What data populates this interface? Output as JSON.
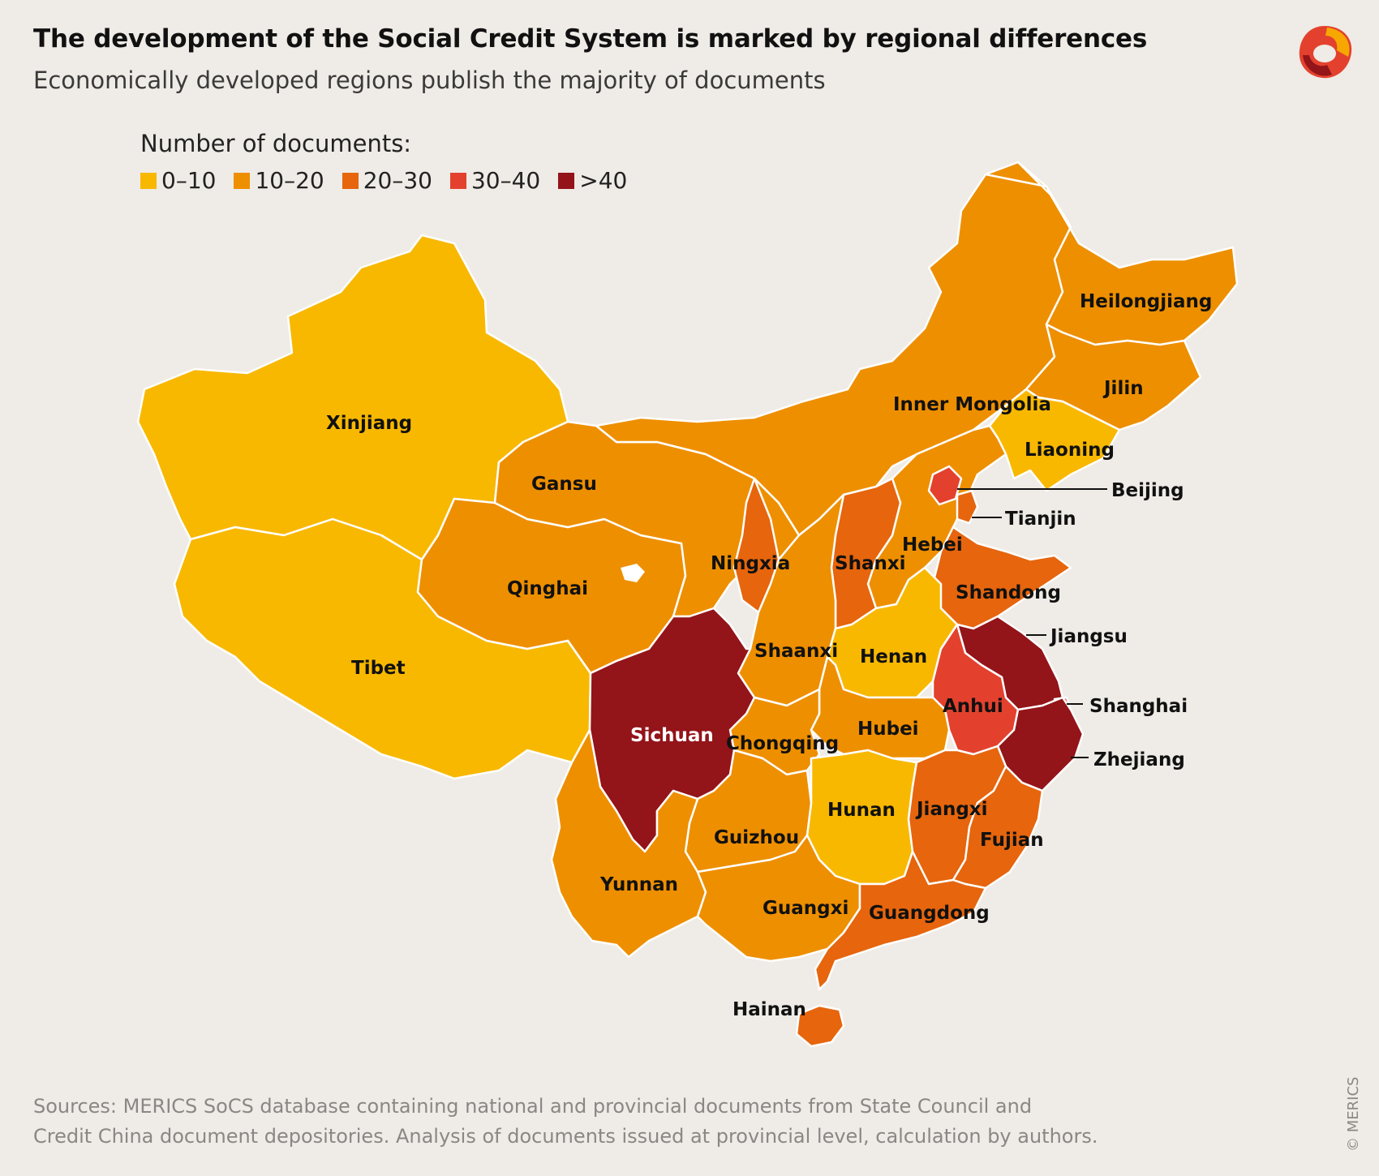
{
  "title": "The development of the Social Credit System is marked by regional differences",
  "subtitle": "Economically developed regions publish the majority of documents",
  "legend": {
    "title": "Number of documents:",
    "items": [
      {
        "label": "0–10",
        "color": "#f8b800"
      },
      {
        "label": "10–20",
        "color": "#ee8f00"
      },
      {
        "label": "20–30",
        "color": "#e6650d"
      },
      {
        "label": "30–40",
        "color": "#e3412e"
      },
      {
        "label": ">40",
        "color": "#931419"
      }
    ]
  },
  "provinces": [
    {
      "name": "Xinjiang",
      "range": "0–10"
    },
    {
      "name": "Tibet",
      "range": "0–10"
    },
    {
      "name": "Qinghai",
      "range": "10–20"
    },
    {
      "name": "Gansu",
      "range": "10–20"
    },
    {
      "name": "Inner Mongolia",
      "range": "10–20"
    },
    {
      "name": "Heilongjiang",
      "range": "10–20"
    },
    {
      "name": "Jilin",
      "range": "10–20"
    },
    {
      "name": "Liaoning",
      "range": "0–10"
    },
    {
      "name": "Beijing",
      "range": "30–40"
    },
    {
      "name": "Tianjin",
      "range": "20–30"
    },
    {
      "name": "Hebei",
      "range": "10–20"
    },
    {
      "name": "Shanxi",
      "range": "20–30"
    },
    {
      "name": "Ningxia",
      "range": "20–30"
    },
    {
      "name": "Shandong",
      "range": "20–30"
    },
    {
      "name": "Shaanxi",
      "range": "10–20"
    },
    {
      "name": "Henan",
      "range": "0–10"
    },
    {
      "name": "Jiangsu",
      "range": ">40"
    },
    {
      "name": "Anhui",
      "range": "30–40"
    },
    {
      "name": "Shanghai",
      "range": "30–40"
    },
    {
      "name": "Sichuan",
      "range": ">40"
    },
    {
      "name": "Chongqing",
      "range": "10–20"
    },
    {
      "name": "Hubei",
      "range": "10–20"
    },
    {
      "name": "Zhejiang",
      "range": ">40"
    },
    {
      "name": "Hunan",
      "range": "0–10"
    },
    {
      "name": "Jiangxi",
      "range": "20–30"
    },
    {
      "name": "Guizhou",
      "range": "10–20"
    },
    {
      "name": "Fujian",
      "range": "20–30"
    },
    {
      "name": "Yunnan",
      "range": "10–20"
    },
    {
      "name": "Guangxi",
      "range": "10–20"
    },
    {
      "name": "Guangdong",
      "range": "20–30"
    },
    {
      "name": "Hainan",
      "range": "20–30"
    }
  ],
  "source": {
    "line1": "Sources: MERICS SoCS database containing national and provincial documents from State Council and",
    "line2": "Credit China document depositories. Analysis of documents issued at provincial level, calculation by authors."
  },
  "copyright": "© MERICS"
}
